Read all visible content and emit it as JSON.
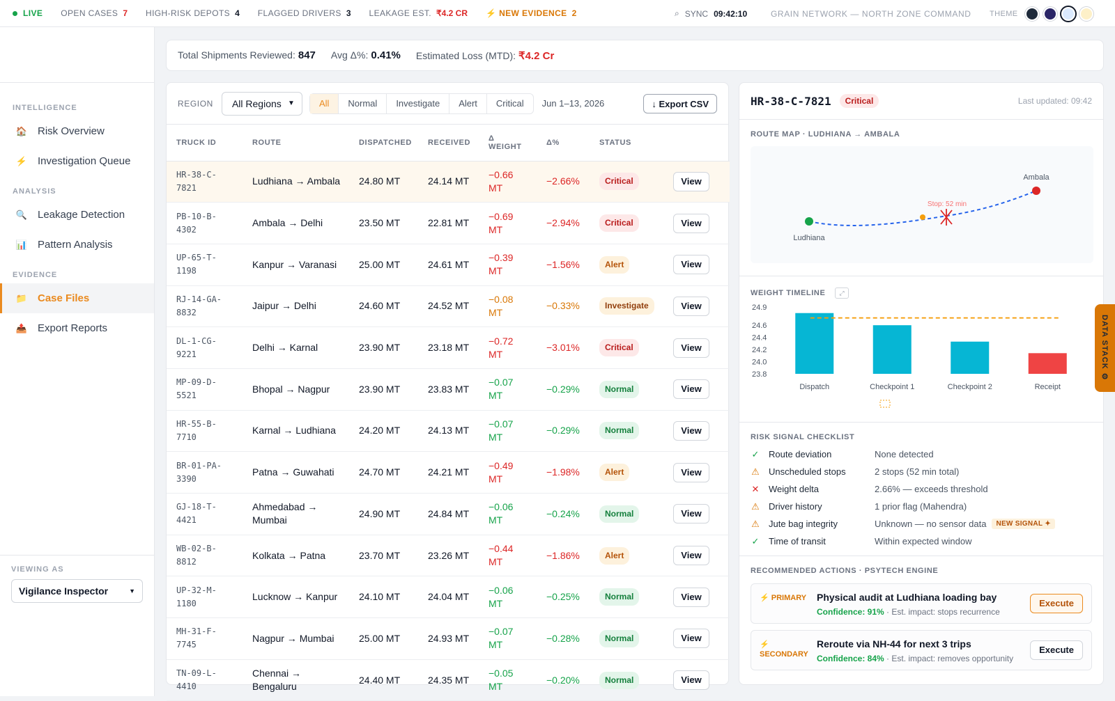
{
  "topbar": {
    "live": "LIVE",
    "open_cases_label": "OPEN CASES",
    "open_cases": "7",
    "high_risk_label": "HIGH-RISK DEPOTS",
    "high_risk": "4",
    "flagged_label": "FLAGGED DRIVERS",
    "flagged": "3",
    "leakage_label": "LEAKAGE EST.",
    "leakage": "₹4.2 Cr",
    "evidence_label": "⚡ NEW EVIDENCE",
    "evidence": "2",
    "sync_label": "SYNC",
    "sync_time": "09:42:10",
    "network": "GRAIN NETWORK — NORTH ZONE COMMAND",
    "theme_label": "THEME",
    "theme_colors": [
      "#1e2a3b",
      "#2a2566",
      "#dbeafe",
      "#fdf0c8"
    ]
  },
  "sidebar": {
    "sections": [
      {
        "title": "INTELLIGENCE",
        "items": [
          {
            "label": "Risk Overview",
            "icon": "🏠",
            "icon_name": "home-icon",
            "active": false
          },
          {
            "label": "Investigation Queue",
            "icon": "⚡",
            "icon_name": "bolt-icon",
            "active": false
          }
        ]
      },
      {
        "title": "ANALYSIS",
        "items": [
          {
            "label": "Leakage Detection",
            "icon": "🔍",
            "icon_name": "magnifier-icon",
            "active": false
          },
          {
            "label": "Pattern Analysis",
            "icon": "📊",
            "icon_name": "bar-chart-icon",
            "active": false
          }
        ]
      },
      {
        "title": "EVIDENCE",
        "items": [
          {
            "label": "Case Files",
            "icon": "📁",
            "icon_name": "folder-icon",
            "active": true
          },
          {
            "label": "Export Reports",
            "icon": "📤",
            "icon_name": "export-tray-icon",
            "active": false
          }
        ]
      }
    ],
    "viewing_label": "VIEWING AS",
    "viewing_value": "Vigilance Inspector"
  },
  "stats": {
    "shipments_label": "Total Shipments Reviewed:",
    "shipments": "847",
    "avg_label": "Avg Δ%:",
    "avg": "0.41%",
    "loss_label": "Estimated Loss (MTD):",
    "loss": "₹4.2 Cr"
  },
  "filters": {
    "region_label": "REGION",
    "region_value": "All Regions",
    "segments": [
      "All",
      "Normal",
      "Investigate",
      "Alert",
      "Critical"
    ],
    "active_segment": "All",
    "date_range": "Jun 1–13, 2026",
    "export_label": "↓ Export CSV"
  },
  "table": {
    "headers": [
      "TRUCK ID",
      "ROUTE",
      "DISPATCHED",
      "RECEIVED",
      "Δ WEIGHT",
      "Δ%",
      "STATUS",
      ""
    ],
    "view_label": "View",
    "rows": [
      {
        "id": "HR-38-C-7821",
        "route": "Ludhiana → Ambala",
        "dispatched": "24.80 MT",
        "received": "24.14 MT",
        "delta": "−0.66 MT",
        "pct": "−2.66%",
        "status": "Critical",
        "tone": "neg"
      },
      {
        "id": "PB-10-B-4302",
        "route": "Ambala → Delhi",
        "dispatched": "23.50 MT",
        "received": "22.81 MT",
        "delta": "−0.69 MT",
        "pct": "−2.94%",
        "status": "Critical",
        "tone": "neg"
      },
      {
        "id": "UP-65-T-1198",
        "route": "Kanpur → Varanasi",
        "dispatched": "25.00 MT",
        "received": "24.61 MT",
        "delta": "−0.39 MT",
        "pct": "−1.56%",
        "status": "Alert",
        "tone": "neg"
      },
      {
        "id": "RJ-14-GA-8832",
        "route": "Jaipur → Delhi",
        "dispatched": "24.60 MT",
        "received": "24.52 MT",
        "delta": "−0.08 MT",
        "pct": "−0.33%",
        "status": "Investigate",
        "tone": "mid"
      },
      {
        "id": "DL-1-CG-9221",
        "route": "Delhi → Karnal",
        "dispatched": "23.90 MT",
        "received": "23.18 MT",
        "delta": "−0.72 MT",
        "pct": "−3.01%",
        "status": "Critical",
        "tone": "neg"
      },
      {
        "id": "MP-09-D-5521",
        "route": "Bhopal → Nagpur",
        "dispatched": "23.90 MT",
        "received": "23.83 MT",
        "delta": "−0.07 MT",
        "pct": "−0.29%",
        "status": "Normal",
        "tone": "pos"
      },
      {
        "id": "HR-55-B-7710",
        "route": "Karnal → Ludhiana",
        "dispatched": "24.20 MT",
        "received": "24.13 MT",
        "delta": "−0.07 MT",
        "pct": "−0.29%",
        "status": "Normal",
        "tone": "pos"
      },
      {
        "id": "BR-01-PA-3390",
        "route": "Patna → Guwahati",
        "dispatched": "24.70 MT",
        "received": "24.21 MT",
        "delta": "−0.49 MT",
        "pct": "−1.98%",
        "status": "Alert",
        "tone": "neg"
      },
      {
        "id": "GJ-18-T-4421",
        "route": "Ahmedabad → Mumbai",
        "dispatched": "24.90 MT",
        "received": "24.84 MT",
        "delta": "−0.06 MT",
        "pct": "−0.24%",
        "status": "Normal",
        "tone": "pos"
      },
      {
        "id": "WB-02-B-8812",
        "route": "Kolkata → Patna",
        "dispatched": "23.70 MT",
        "received": "23.26 MT",
        "delta": "−0.44 MT",
        "pct": "−1.86%",
        "status": "Alert",
        "tone": "neg"
      },
      {
        "id": "UP-32-M-1180",
        "route": "Lucknow → Kanpur",
        "dispatched": "24.10 MT",
        "received": "24.04 MT",
        "delta": "−0.06 MT",
        "pct": "−0.25%",
        "status": "Normal",
        "tone": "pos"
      },
      {
        "id": "MH-31-F-7745",
        "route": "Nagpur → Mumbai",
        "dispatched": "25.00 MT",
        "received": "24.93 MT",
        "delta": "−0.07 MT",
        "pct": "−0.28%",
        "status": "Normal",
        "tone": "pos"
      },
      {
        "id": "TN-09-L-4410",
        "route": "Chennai → Bengaluru",
        "dispatched": "24.40 MT",
        "received": "24.35 MT",
        "delta": "−0.05 MT",
        "pct": "−0.20%",
        "status": "Normal",
        "tone": "pos"
      }
    ]
  },
  "detail": {
    "truck_id": "HR-38-C-7821",
    "status": "Critical",
    "updated": "Last updated: 09:42",
    "route_title": "ROUTE MAP · LUDHIANA → AMBALA",
    "origin": "Ludhiana",
    "destination": "Ambala",
    "stop_label": "Stop: 52 min",
    "weight_title": "WEIGHT TIMELINE",
    "risk_title": "RISK SIGNAL CHECKLIST",
    "risks": [
      {
        "mark": "✓",
        "kind": "ok",
        "name": "Route deviation",
        "value": "None detected",
        "new": ""
      },
      {
        "mark": "⚠",
        "kind": "warn",
        "name": "Unscheduled stops",
        "value": "2 stops (52 min total)",
        "new": ""
      },
      {
        "mark": "✕",
        "kind": "bad",
        "name": "Weight delta",
        "value": "2.66% — exceeds threshold",
        "new": ""
      },
      {
        "mark": "⚠",
        "kind": "warn",
        "name": "Driver history",
        "value": "1 prior flag (Mahendra)",
        "new": ""
      },
      {
        "mark": "⚠",
        "kind": "warn",
        "name": "Jute bag integrity",
        "value": "Unknown — no sensor data",
        "new": "NEW SIGNAL ✦"
      },
      {
        "mark": "✓",
        "kind": "ok",
        "name": "Time of transit",
        "value": "Within expected window",
        "new": ""
      }
    ],
    "actions_title": "RECOMMENDED ACTIONS · PSYTECH ENGINE",
    "actions": [
      {
        "tag": "⚡ PRIMARY",
        "title": "Physical audit at Ludhiana loading bay",
        "confidence": "Confidence: 91%",
        "impact": " · Est. impact: stops recurrence",
        "button": "Execute",
        "primary": true
      },
      {
        "tag": "⚡ SECONDARY",
        "title": "Reroute via NH-44 for next 3 trips",
        "confidence": "Confidence: 84%",
        "impact": " · Est. impact: removes opportunity",
        "button": "Execute",
        "primary": false
      }
    ]
  },
  "side_tab": "DATA STACK ⚙",
  "chart_data": {
    "type": "bar",
    "categories": [
      "Dispatch",
      "Checkpoint 1",
      "Checkpoint 2",
      "Receipt"
    ],
    "values": [
      24.8,
      24.6,
      24.33,
      24.14
    ],
    "ylim": [
      23.8,
      24.9
    ],
    "yticks": [
      "24.9",
      "24.6",
      "24.4",
      "24.2",
      "24.0",
      "23.8"
    ],
    "ytick_values": [
      24.9,
      24.6,
      24.4,
      24.2,
      24.0,
      23.8
    ],
    "threshold": 24.72,
    "bar_colors": [
      "#06b6d4",
      "#06b6d4",
      "#06b6d4",
      "#ef4444"
    ],
    "threshold_color": "#f59e0b"
  }
}
